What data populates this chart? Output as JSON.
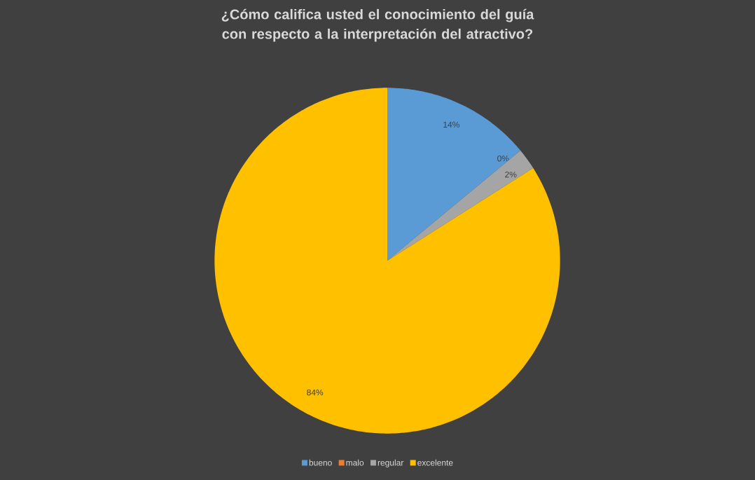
{
  "chart_data": {
    "type": "pie",
    "title": "¿Cómo califica usted el conocimiento del guía con respecto a la interpretación del atractivo?",
    "categories": [
      "bueno",
      "malo",
      "regular",
      "excelente"
    ],
    "values": [
      14,
      0,
      2,
      84
    ],
    "colors": [
      "#5b9bd5",
      "#ed7d31",
      "#a5a5a5",
      "#ffc000"
    ],
    "value_labels": [
      "14%",
      "0%",
      "2%",
      "84%"
    ],
    "legend": "bottom"
  }
}
